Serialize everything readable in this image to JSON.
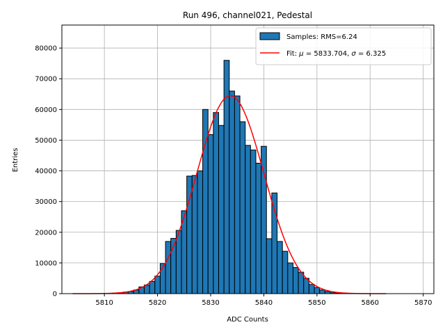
{
  "chart_data": {
    "type": "bar",
    "title": "Run 496, channel021, Pedestal",
    "xlabel": "ADC Counts",
    "ylabel": "Entries",
    "xlim": [
      5802,
      5872
    ],
    "ylim": [
      0,
      87500
    ],
    "xticks": [
      5810,
      5820,
      5830,
      5840,
      5850,
      5860,
      5870
    ],
    "yticks": [
      0,
      10000,
      20000,
      30000,
      40000,
      50000,
      60000,
      70000,
      80000
    ],
    "grid": true,
    "legend_position": "top-right",
    "colors": {
      "bar_fill": "#1f77b4",
      "bar_edge": "#000000",
      "fit_line": "#ff0000",
      "grid": "#b0b0b0"
    },
    "series": [
      {
        "name": "Samples: RMS=6.24",
        "kind": "histogram",
        "bin_width": 1,
        "bins": [
          5811,
          5812,
          5813,
          5814,
          5815,
          5816,
          5817,
          5818,
          5819,
          5820,
          5821,
          5822,
          5823,
          5824,
          5825,
          5826,
          5827,
          5828,
          5829,
          5830,
          5831,
          5832,
          5833,
          5834,
          5835,
          5836,
          5837,
          5838,
          5839,
          5840,
          5841,
          5842,
          5843,
          5844,
          5845,
          5846,
          5847,
          5848,
          5849,
          5850,
          5851,
          5852,
          5853,
          5854,
          5855
        ],
        "values": [
          100,
          200,
          300,
          500,
          700,
          1200,
          2200,
          2800,
          4000,
          5700,
          9800,
          17000,
          18000,
          20600,
          27000,
          38300,
          38500,
          40000,
          60000,
          51800,
          59000,
          54800,
          76000,
          66000,
          64400,
          56000,
          48300,
          46800,
          42500,
          48000,
          17900,
          32800,
          17000,
          13800,
          10000,
          8500,
          7000,
          5000,
          3000,
          2000,
          1200,
          700,
          300,
          150,
          50
        ]
      },
      {
        "name": "Fit: μ = 5833.704, σ = 6.325",
        "kind": "gaussian_fit",
        "mu": 5833.704,
        "sigma": 6.325,
        "amplitude": 64500,
        "x_range": [
          5804,
          5863
        ]
      }
    ]
  },
  "legend": {
    "items": [
      {
        "label_prefix": "Samples: RMS=6.24"
      },
      {
        "label_prefix": "Fit: ",
        "mu_symbol": "μ",
        "mu_text": " = 5833.704, ",
        "sigma_symbol": "σ",
        "sigma_text": " = 6.325"
      }
    ]
  }
}
